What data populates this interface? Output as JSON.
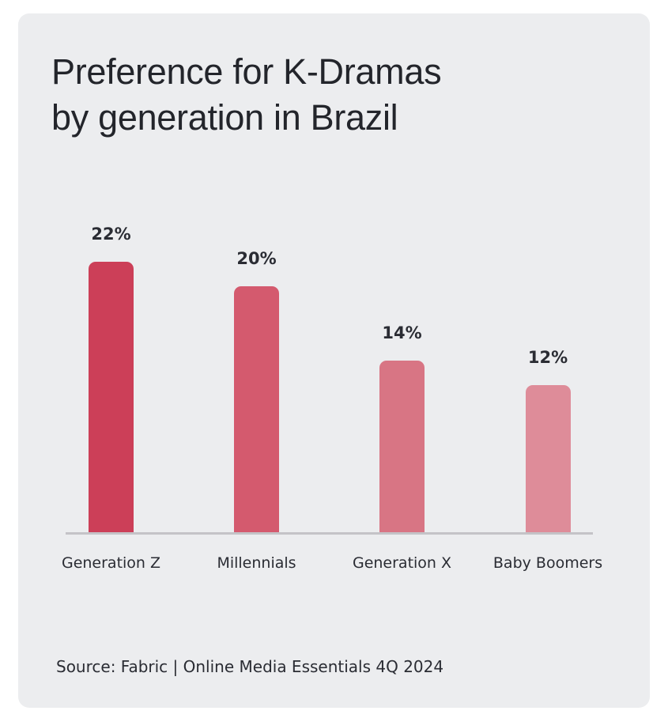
{
  "chart_data": {
    "type": "bar",
    "title": "Preference for K-Dramas by generation in Brazil",
    "title_lines": [
      "Preference for K-Dramas",
      "by generation in Brazil"
    ],
    "categories": [
      "Generation Z",
      "Millennials",
      "Generation X",
      "Baby Boomers"
    ],
    "values": [
      22,
      20,
      14,
      12
    ],
    "value_labels": [
      "22%",
      "20%",
      "14%",
      "12%"
    ],
    "colors": [
      "#cc3f58",
      "#d45a6e",
      "#d87584",
      "#de8c99"
    ],
    "xlabel": "",
    "ylabel": "",
    "unit": "%",
    "grid": false,
    "legend": null,
    "source": "Source: Fabric | Online Media Essentials 4Q 2024"
  }
}
